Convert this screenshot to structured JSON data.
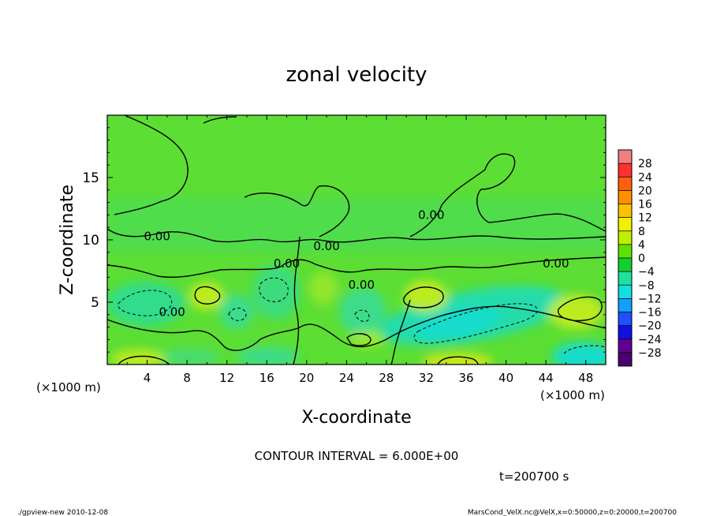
{
  "chart_data": {
    "type": "heatmap",
    "title": "zonal velocity",
    "xlabel": "X-coordinate",
    "ylabel": "Z-coordinate",
    "x_unit_label_left": "(×1000 m)",
    "x_unit_label_right": "(×1000 m)",
    "xlim": [
      0,
      50
    ],
    "ylim": [
      0,
      20
    ],
    "xticks": [
      4,
      8,
      12,
      16,
      20,
      24,
      28,
      32,
      36,
      40,
      44,
      48
    ],
    "yticks": [
      5,
      10,
      15
    ],
    "colorbar": {
      "labels": [
        "28",
        "24",
        "20",
        "16",
        "12",
        "8",
        "4",
        "0",
        "−4",
        "−8",
        "−12",
        "−16",
        "−20",
        "−24",
        "−28"
      ],
      "colors": [
        "#f08080",
        "#ff3030",
        "#ff6010",
        "#ff9000",
        "#ffc000",
        "#f0f000",
        "#c0f000",
        "#60e000",
        "#10d030",
        "#20e0a0",
        "#10e0e0",
        "#10a0ff",
        "#2050ff",
        "#1010e0",
        "#600090",
        "#4a0070"
      ]
    },
    "contour_labels": [
      {
        "text": "0.00",
        "x": 5,
        "z": 10.3
      },
      {
        "text": "0.00",
        "x": 22,
        "z": 9.5
      },
      {
        "text": "0.00",
        "x": 25.5,
        "z": 6.4
      },
      {
        "text": "0.00",
        "x": 45,
        "z": 8.1
      },
      {
        "text": "0.00",
        "x": 6.5,
        "z": 4.2
      },
      {
        "text": "0.00",
        "x": 18,
        "z": 8.1
      },
      {
        "text": "0.00",
        "x": 32.5,
        "z": 12.0
      }
    ],
    "contour_interval_text": "CONTOUR INTERVAL = 6.000E+00",
    "time_text": "t=200700 s"
  },
  "footer": {
    "left": "./gpview-new   2010-12-08",
    "right": "MarsCond_VelX.nc@VelX,x=0:50000,z=0:20000,t=200700"
  }
}
